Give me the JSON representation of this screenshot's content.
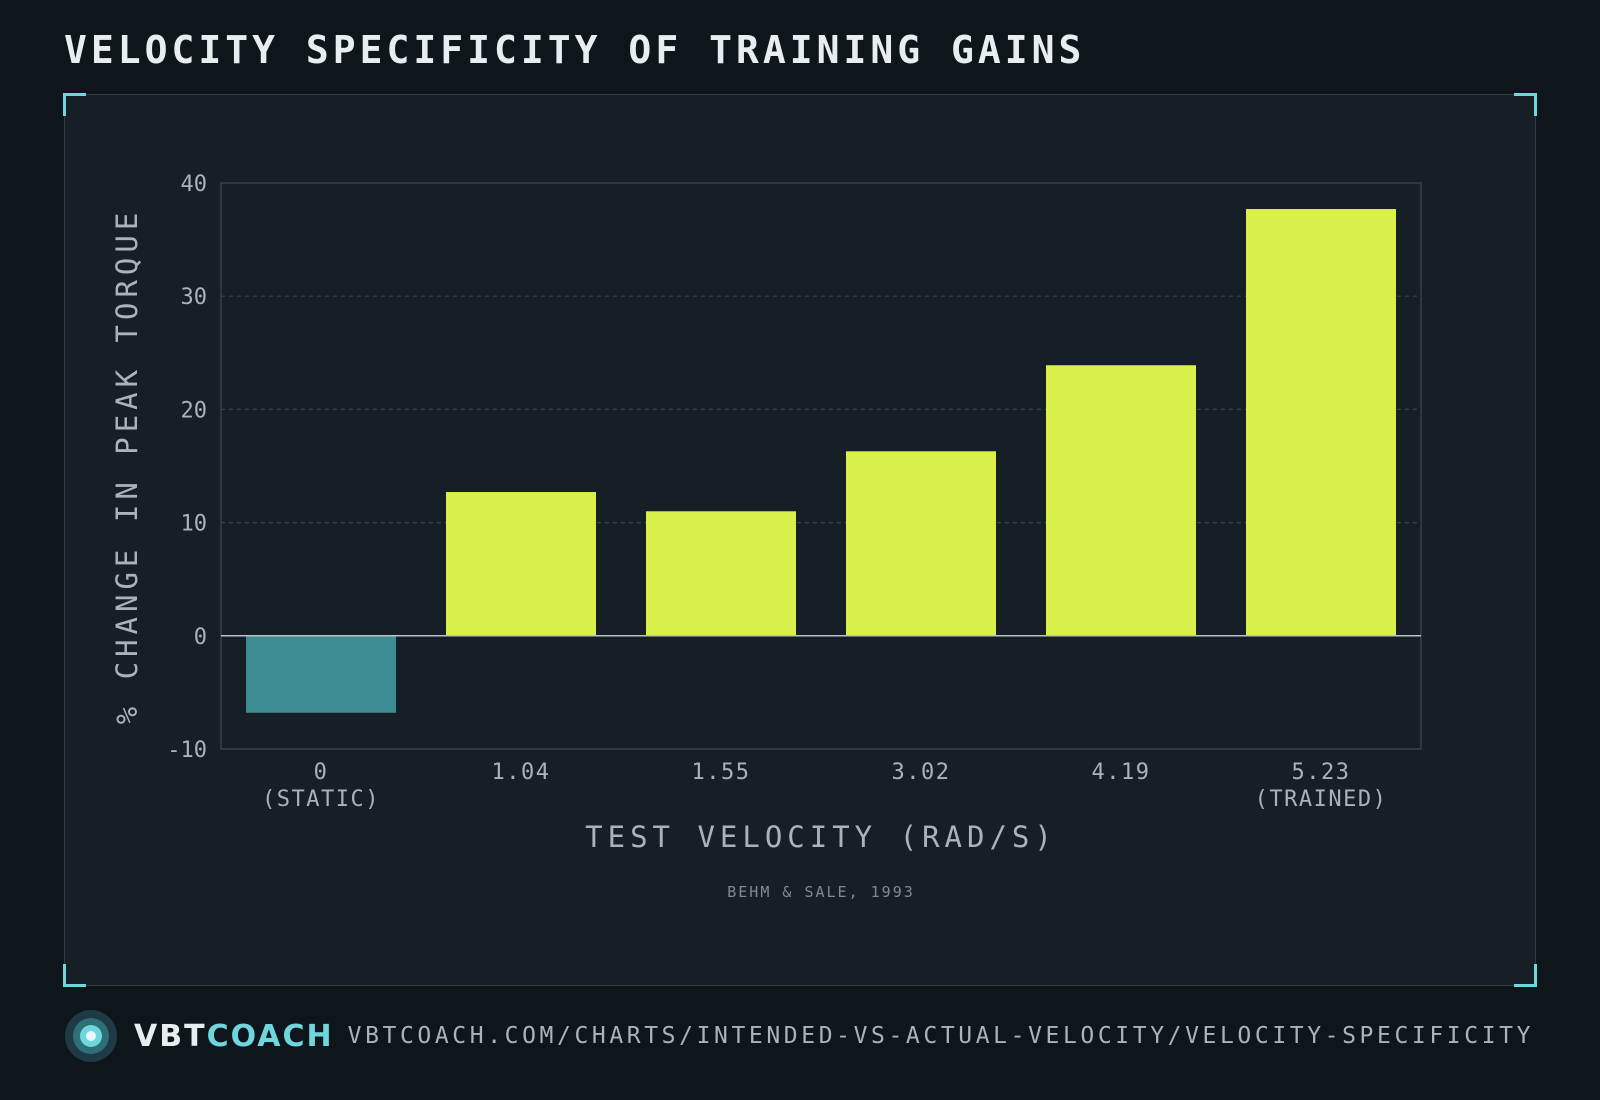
{
  "title": "VELOCITY SPECIFICITY OF TRAINING GAINS",
  "colors": {
    "background": "#0f161b",
    "panel": "#161f26",
    "accent": "#6fd6dd",
    "positive_bar": "#d9f04a",
    "negative_bar": "#3d8c92",
    "axis_text": "#a7b4ba"
  },
  "chart_data": {
    "type": "bar",
    "categories": [
      "0\n(STATIC)",
      "1.04",
      "1.55",
      "3.02",
      "4.19",
      "5.23\n(TRAINED)"
    ],
    "values": [
      -6.8,
      12.7,
      11.0,
      16.3,
      23.9,
      37.7
    ],
    "xlabel": "TEST VELOCITY (RAD/S)",
    "ylabel": "% CHANGE IN PEAK TORQUE",
    "ylim": [
      -10,
      40
    ],
    "yticks": [
      -10,
      0,
      10,
      20,
      30,
      40
    ],
    "grid": true,
    "source": "BEHM & SALE, 1993"
  },
  "footer": {
    "brand_part1": "VBT",
    "brand_part2": "COACH",
    "url": "VBTCOACH.COM/CHARTS/INTENDED-VS-ACTUAL-VELOCITY/VELOCITY-SPECIFICITY",
    "logo_icon": "target-logo-icon"
  }
}
